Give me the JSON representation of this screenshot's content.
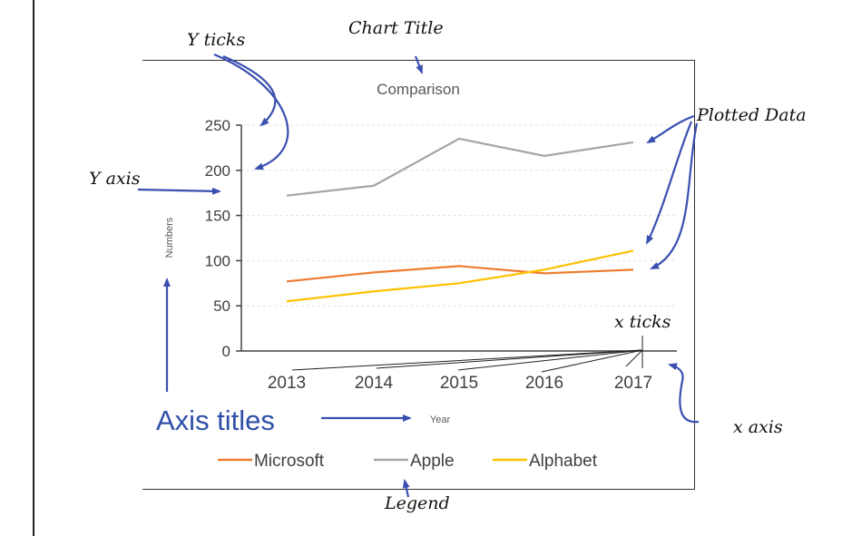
{
  "chart_data": {
    "type": "line",
    "title": "Comparison",
    "xlabel": "Year",
    "ylabel": "Numbers",
    "categories": [
      "2013",
      "2014",
      "2015",
      "2016",
      "2017"
    ],
    "yticks": [
      "0",
      "50",
      "100",
      "150",
      "200",
      "250"
    ],
    "ylim": [
      0,
      250
    ],
    "grid": true,
    "legend_position": "bottom",
    "series": [
      {
        "name": "Microsoft",
        "color": "#ed7d31",
        "values": [
          77,
          87,
          94,
          86,
          90
        ]
      },
      {
        "name": "Apple",
        "color": "#a5a5a5",
        "values": [
          172,
          183,
          235,
          216,
          231
        ]
      },
      {
        "name": "Alphabet",
        "color": "#ffc000",
        "values": [
          55,
          66,
          75,
          90,
          111
        ]
      }
    ]
  },
  "annotations": {
    "chart_title": "Chart Title",
    "y_ticks": "Y ticks",
    "y_axis": "Y axis",
    "plotted_data": "Plotted Data",
    "x_ticks": "x ticks",
    "axis_titles": "Axis titles",
    "x_axis": "x axis",
    "legend": "Legend"
  },
  "colors": {
    "annotation_arrow": "#3a4fb0",
    "axis_titles_text": "#2f4fa8",
    "gridline": "#e2e2e2",
    "axis": "#444444"
  }
}
